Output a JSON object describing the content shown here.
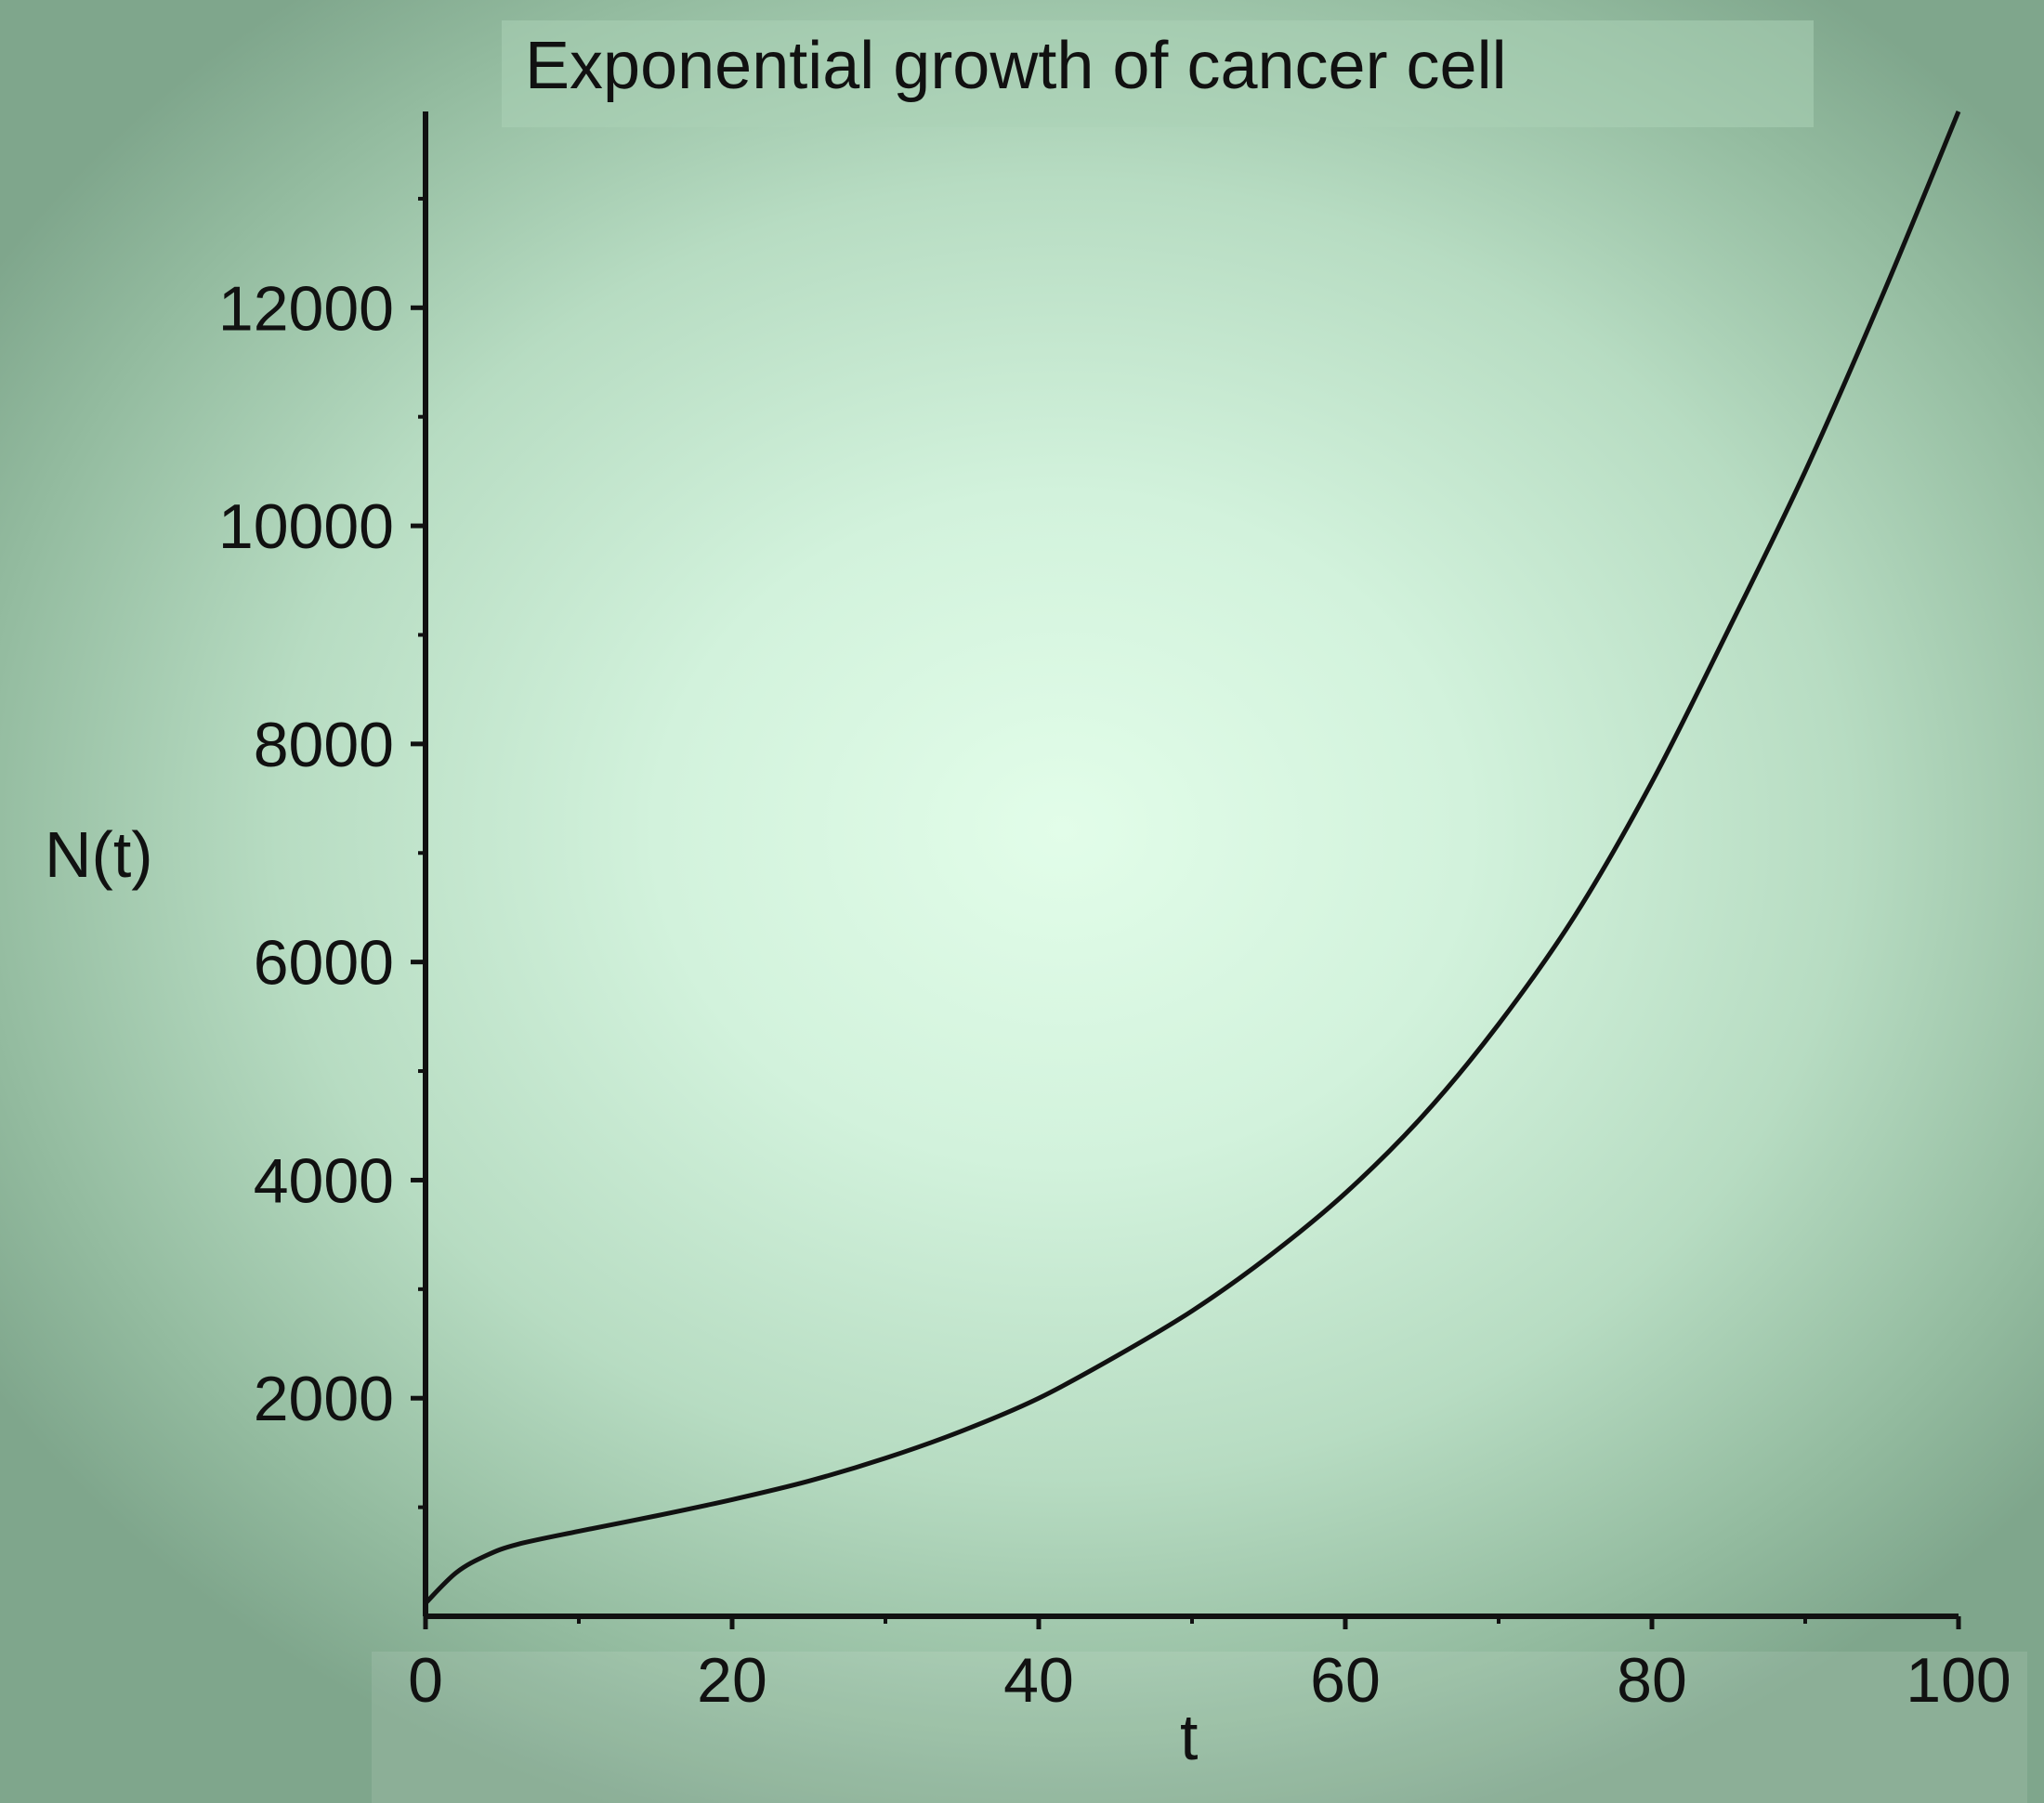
{
  "chart_data": {
    "type": "line",
    "title": "Exponential growth of cancer cell",
    "xlabel": "t",
    "ylabel": "N(t)",
    "xlim": [
      0,
      100
    ],
    "ylim": [
      0,
      13800
    ],
    "xticks": [
      0,
      20,
      40,
      60,
      80,
      100
    ],
    "yticks": [
      2000,
      4000,
      6000,
      8000,
      10000,
      12000
    ],
    "grid": false,
    "series": [
      {
        "x": [
          0,
          2,
          4,
          6,
          10,
          15,
          20,
          25,
          30,
          35,
          40,
          45,
          50,
          55,
          60,
          65,
          70,
          75,
          80,
          85,
          90,
          95,
          100
        ],
        "y": [
          120,
          400,
          560,
          660,
          780,
          920,
          1070,
          1240,
          1450,
          1700,
          2000,
          2380,
          2800,
          3300,
          3880,
          4580,
          5430,
          6430,
          7650,
          9050,
          10500,
          12100,
          13800
        ]
      }
    ]
  }
}
